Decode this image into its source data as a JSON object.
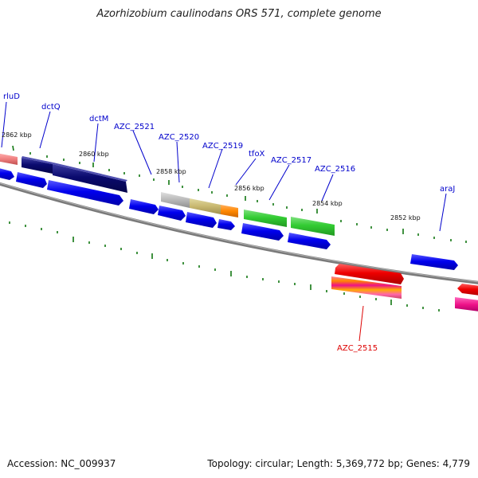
{
  "title": "Azorhizobium caulinodans ORS 571, complete genome",
  "accession": "Accession: NC_009937",
  "summary": "Topology: circular; Length: 5,369,772 bp; Genes: 4,779",
  "gene_labels": {
    "rluD": "rluD",
    "dctQ": "dctQ",
    "dctM": "dctM",
    "AZC_2521": "AZC_2521",
    "AZC_2520": "AZC_2520",
    "AZC_2519": "AZC_2519",
    "tfoX": "tfoX",
    "AZC_2517": "AZC_2517",
    "AZC_2516": "AZC_2516",
    "araJ": "araJ",
    "AZC_2515": "AZC_2515"
  },
  "kbp_labels": {
    "k2862": "2862 kbp",
    "k2860": "2860 kbp",
    "k2858": "2858 kbp",
    "k2856": "2856 kbp",
    "k2854": "2854 kbp",
    "k2852": "2852 kbp"
  },
  "colors": {
    "label_blue": "#0000cc",
    "label_red": "#dd0000",
    "cds_blue": "#0000ee",
    "navy": "#0a0a6e",
    "green": "#33cc33",
    "red": "#ee0000",
    "orange": "#ff8800",
    "gray": "#b8b8b8",
    "khaki": "#c8b870",
    "pink": "#f08080",
    "magenta": "#ee1188",
    "backbone": "#7a7a7a",
    "tick": "#117711"
  }
}
